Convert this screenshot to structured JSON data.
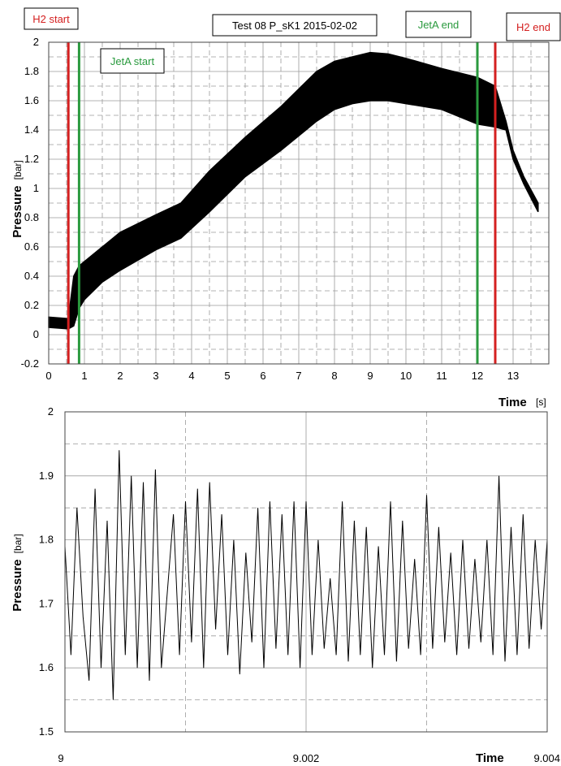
{
  "chart_data": [
    {
      "type": "line",
      "title": "Test  08 P_sK1 2015-02-02",
      "xlabel": "Time",
      "xunit": "[s]",
      "ylabel": "Pressure",
      "yunit": "[bar]",
      "xlim": [
        0,
        14
      ],
      "ylim": [
        -0.2,
        2
      ],
      "xticks": [
        0,
        1,
        2,
        3,
        4,
        5,
        6,
        7,
        8,
        9,
        10,
        11,
        12,
        13
      ],
      "yticks": [
        -0.2,
        0,
        0.2,
        0.4,
        0.6,
        0.8,
        1,
        1.2,
        1.4,
        1.6,
        1.8,
        2
      ],
      "ytick_labels": [
        "-0.2",
        "0",
        "0.2",
        "0.4",
        "0.6",
        "0.8",
        "1",
        "1.2",
        "1.4",
        "1.6",
        "1.8",
        "2"
      ],
      "grid": true,
      "series": [
        {
          "color": "#000000",
          "envelope_x": [
            0.0,
            0.55,
            0.7,
            0.85,
            1.0,
            1.5,
            2.0,
            3.0,
            3.7,
            4.5,
            5.5,
            6.5,
            7.5,
            8.0,
            8.5,
            9.0,
            9.5,
            10.0,
            11.0,
            12.0,
            12.5,
            12.8,
            13.0,
            13.3,
            13.7
          ],
          "envelope_lower": [
            0.05,
            0.04,
            0.06,
            0.18,
            0.24,
            0.36,
            0.44,
            0.58,
            0.66,
            0.84,
            1.08,
            1.26,
            1.46,
            1.54,
            1.58,
            1.6,
            1.6,
            1.58,
            1.54,
            1.44,
            1.42,
            1.4,
            1.2,
            1.03,
            0.84
          ],
          "envelope_upper": [
            0.12,
            0.11,
            0.4,
            0.47,
            0.5,
            0.6,
            0.7,
            0.82,
            0.9,
            1.12,
            1.35,
            1.56,
            1.8,
            1.87,
            1.9,
            1.93,
            1.92,
            1.89,
            1.82,
            1.76,
            1.7,
            1.46,
            1.26,
            1.08,
            0.9
          ]
        }
      ],
      "annotations": [
        {
          "label": "H2 start",
          "x": 0.55,
          "color": "#d42020",
          "label_color": "#d42020"
        },
        {
          "label": "JetA start",
          "x": 0.85,
          "color": "#2a9a3e",
          "label_color": "#2a9a3e"
        },
        {
          "label": "JetA end",
          "x": 12.0,
          "color": "#2a9a3e",
          "label_color": "#2a9a3e"
        },
        {
          "label": "H2 end",
          "x": 12.5,
          "color": "#d42020",
          "label_color": "#d42020"
        }
      ]
    },
    {
      "type": "line",
      "xlabel": "Time",
      "ylabel": "Pressure",
      "yunit": "[bar]",
      "xlim": [
        9,
        9.004
      ],
      "ylim": [
        1.5,
        2
      ],
      "xticks": [
        9,
        9.002,
        9.004
      ],
      "xtick_labels": [
        "9",
        "9.002",
        "9.004"
      ],
      "yticks": [
        1.5,
        1.6,
        1.7,
        1.8,
        1.9,
        2
      ],
      "ytick_labels": [
        "1.5",
        "1.6",
        "1.7",
        "1.8",
        "1.9",
        "2"
      ],
      "grid": true,
      "series": [
        {
          "color": "#000000",
          "x": [
            9.0,
            9.00005,
            9.0001,
            9.00015,
            9.0002,
            9.00025,
            9.0003,
            9.00035,
            9.0004,
            9.00045,
            9.0005,
            9.00055,
            9.0006,
            9.00065,
            9.0007,
            9.00075,
            9.0008,
            9.00085,
            9.0009,
            9.00095,
            9.001,
            9.00105,
            9.0011,
            9.00115,
            9.0012,
            9.00125,
            9.0013,
            9.00135,
            9.0014,
            9.00145,
            9.0015,
            9.00155,
            9.0016,
            9.00165,
            9.0017,
            9.00175,
            9.0018,
            9.00185,
            9.0019,
            9.00195,
            9.002,
            9.00205,
            9.0021,
            9.00215,
            9.0022,
            9.00225,
            9.0023,
            9.00235,
            9.0024,
            9.00245,
            9.0025,
            9.00255,
            9.0026,
            9.00265,
            9.0027,
            9.00275,
            9.0028,
            9.00285,
            9.0029,
            9.00295,
            9.003,
            9.00305,
            9.0031,
            9.00315,
            9.0032,
            9.00325,
            9.0033,
            9.00335,
            9.0034,
            9.00345,
            9.0035,
            9.00355,
            9.0036,
            9.00365,
            9.0037,
            9.00375,
            9.0038,
            9.00385,
            9.0039,
            9.00395,
            9.004
          ],
          "y": [
            1.79,
            1.62,
            1.85,
            1.68,
            1.58,
            1.88,
            1.6,
            1.83,
            1.55,
            1.94,
            1.62,
            1.9,
            1.6,
            1.89,
            1.58,
            1.91,
            1.6,
            1.72,
            1.84,
            1.62,
            1.86,
            1.64,
            1.88,
            1.6,
            1.89,
            1.66,
            1.84,
            1.62,
            1.8,
            1.59,
            1.78,
            1.64,
            1.85,
            1.6,
            1.86,
            1.63,
            1.84,
            1.62,
            1.86,
            1.6,
            1.86,
            1.62,
            1.8,
            1.63,
            1.74,
            1.62,
            1.86,
            1.61,
            1.83,
            1.62,
            1.82,
            1.6,
            1.79,
            1.62,
            1.86,
            1.61,
            1.83,
            1.63,
            1.77,
            1.62,
            1.87,
            1.63,
            1.82,
            1.64,
            1.78,
            1.62,
            1.8,
            1.63,
            1.77,
            1.64,
            1.8,
            1.62,
            1.9,
            1.61,
            1.82,
            1.62,
            1.84,
            1.63,
            1.8,
            1.66,
            1.8
          ]
        }
      ]
    }
  ]
}
